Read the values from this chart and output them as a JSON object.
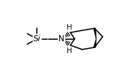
{
  "bg_color": "#ffffff",
  "bond_color": "#000000",
  "Si_label": "Si",
  "N_label": "N",
  "H_top": "H",
  "H_bot": "H",
  "figsize": [
    1.9,
    1.12
  ],
  "dpi": 100,
  "lw": 1.2
}
